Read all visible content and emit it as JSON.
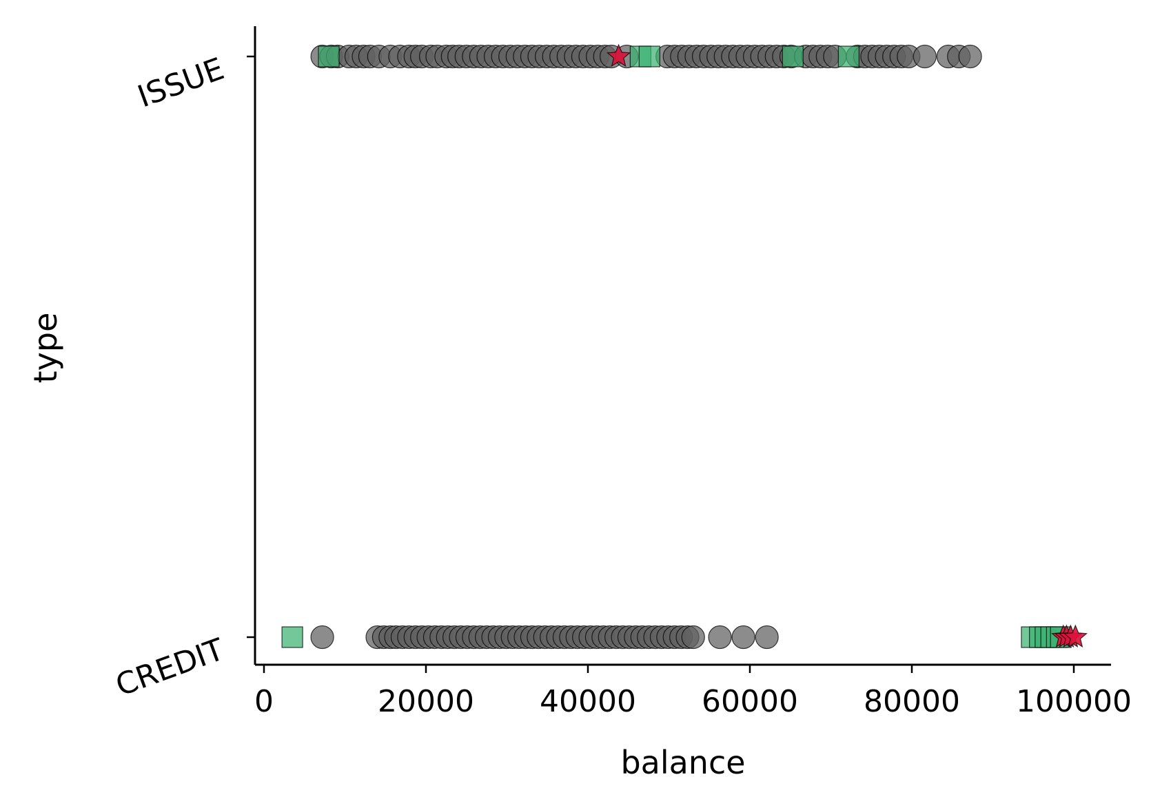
{
  "chart_data": {
    "type": "scatter",
    "title": "",
    "xlabel": "balance",
    "ylabel": "type",
    "xlim": [
      -1500,
      105000
    ],
    "x_ticks": [
      0,
      20000,
      40000,
      60000,
      80000,
      100000
    ],
    "x_tick_labels": [
      "0",
      "20000",
      "40000",
      "60000",
      "80000",
      "100000"
    ],
    "categories": [
      "CREDIT",
      "ISSUE"
    ],
    "grid": false,
    "legend": "none",
    "colors": {
      "normal": "#5f5f5f",
      "square": "#3cb371",
      "star": "#dc143c",
      "edge": "#000000",
      "axis": "#000000"
    },
    "series": [
      {
        "marker": "circle",
        "category": "ISSUE",
        "x": [
          7200,
          8300,
          9100,
          10500,
          11400,
          12300,
          13100,
          14200,
          15600,
          16800,
          17900,
          18700,
          19500,
          20600,
          21400,
          22500,
          23300,
          24100,
          25000,
          25900,
          26800,
          27700,
          28600,
          29500,
          30400,
          31300,
          32200,
          33100,
          34000,
          34900,
          35800,
          36700,
          37600,
          38500,
          39400,
          40300,
          41200,
          42100,
          42900,
          44800,
          49800,
          50700,
          51600,
          52500,
          53400,
          54300,
          55200,
          56100,
          57000,
          57900,
          58800,
          59700,
          60600,
          61500,
          62400,
          63300,
          64200,
          65100,
          66900,
          67800,
          68700,
          69600,
          70500,
          73300,
          74200,
          75100,
          76000,
          76900,
          77800,
          78700,
          79600,
          81600,
          84500,
          85800,
          87200
        ]
      },
      {
        "marker": "square",
        "category": "ISSUE",
        "x": [
          8000,
          46500,
          47600,
          65300,
          72200
        ]
      },
      {
        "marker": "star",
        "category": "ISSUE",
        "x": [
          43800
        ]
      },
      {
        "marker": "circle",
        "category": "CREDIT",
        "x": [
          7200,
          14000,
          14800,
          15600,
          16300,
          17100,
          17900,
          18700,
          19500,
          20300,
          21100,
          21900,
          22700,
          23500,
          24300,
          25100,
          25900,
          26700,
          27500,
          28300,
          29100,
          29900,
          30700,
          31500,
          32300,
          33100,
          33900,
          34700,
          35500,
          36300,
          37100,
          37900,
          38700,
          39500,
          40300,
          41100,
          41900,
          42700,
          43500,
          44300,
          45100,
          45900,
          46700,
          47500,
          48300,
          49100,
          49900,
          50700,
          51500,
          52300,
          53000,
          56300,
          59200,
          62100
        ]
      },
      {
        "marker": "square",
        "category": "CREDIT",
        "x": [
          3500,
          94800,
          95800,
          96500,
          97200,
          97900,
          98400
        ]
      },
      {
        "marker": "star",
        "category": "CREDIT",
        "x": [
          98700,
          99100,
          99600,
          100200
        ]
      }
    ]
  }
}
